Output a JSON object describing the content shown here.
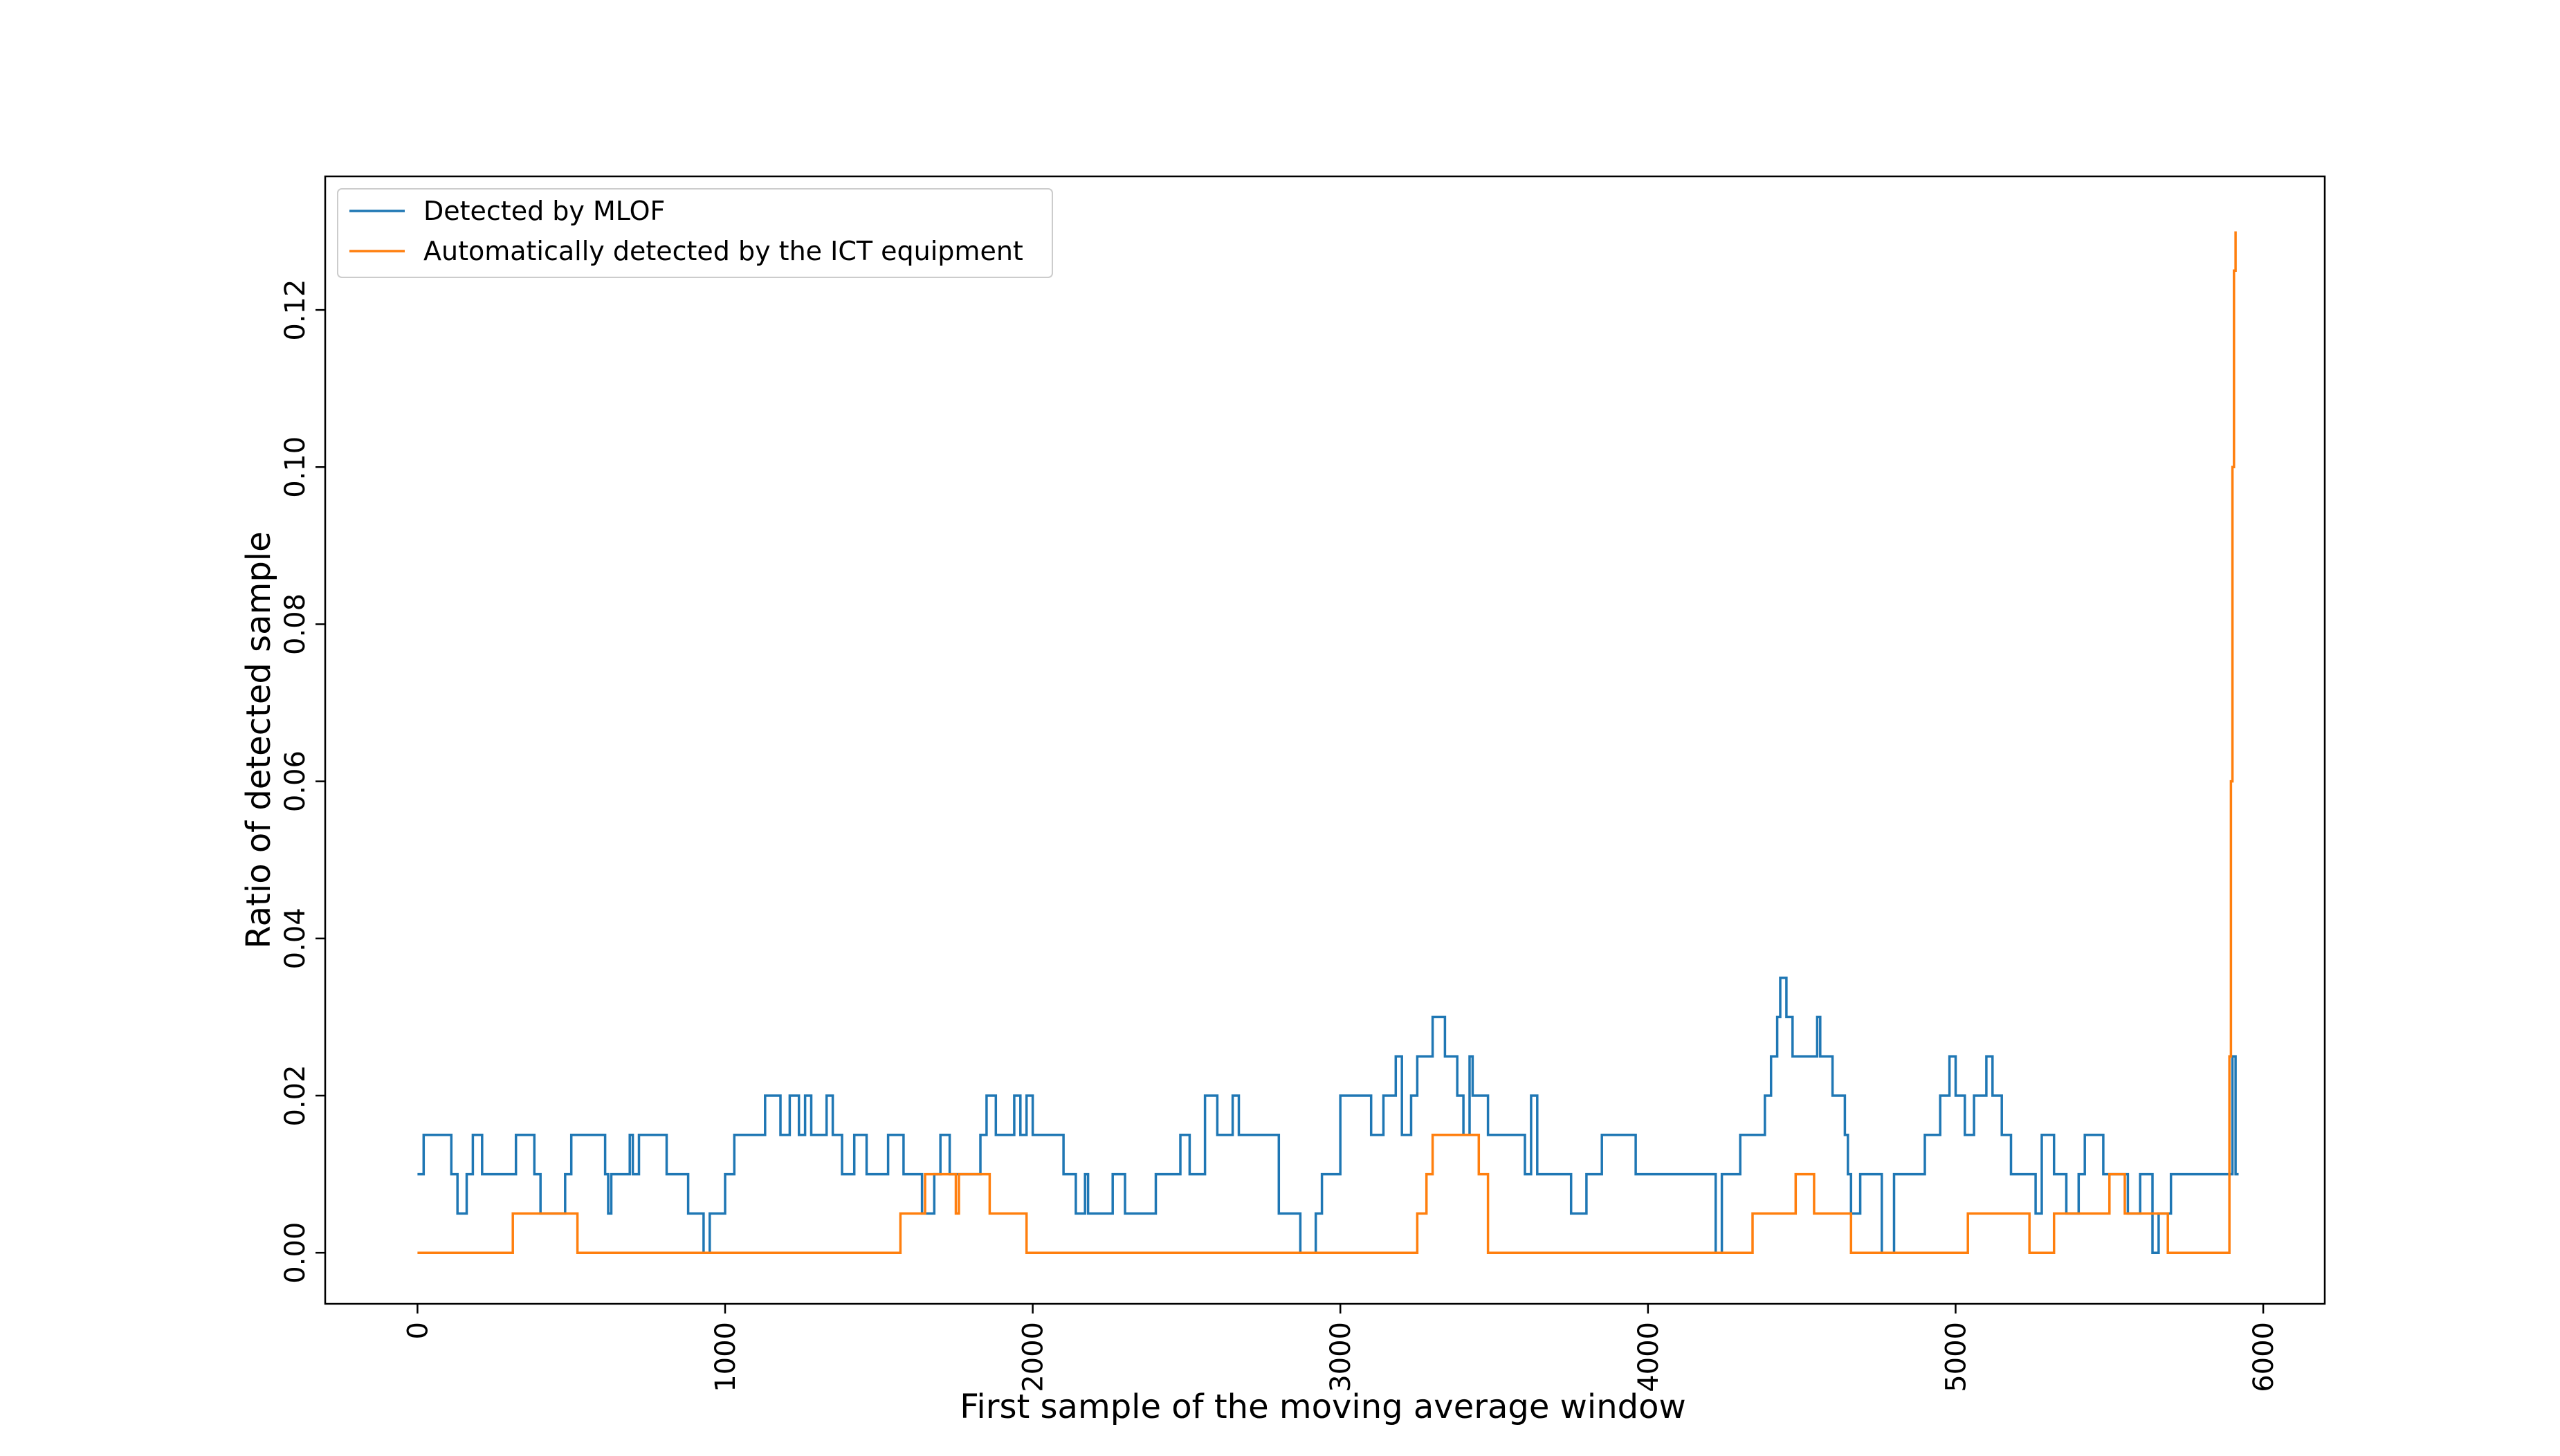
{
  "chart_data": {
    "type": "line",
    "title": "",
    "xlabel": "First sample of the moving average window",
    "ylabel": "Ratio of detected sample",
    "xlim": [
      -300,
      6200
    ],
    "ylim": [
      -0.0065,
      0.137
    ],
    "xticks": [
      0,
      1000,
      2000,
      3000,
      4000,
      5000,
      6000
    ],
    "xtick_labels": [
      "0",
      "1000",
      "2000",
      "3000",
      "4000",
      "5000",
      "6000"
    ],
    "yticks": [
      0.0,
      0.02,
      0.04,
      0.06,
      0.08,
      0.1,
      0.12
    ],
    "ytick_labels": [
      "0.00",
      "0.02",
      "0.04",
      "0.06",
      "0.08",
      "0.10",
      "0.12"
    ],
    "x_tick_rotation": 90,
    "y_tick_rotation": 90,
    "grid": false,
    "legend_position": "upper-left",
    "colors": {
      "mlof": "#1f77b4",
      "ict": "#ff7f0e"
    },
    "series": [
      {
        "name": "Detected by MLOF",
        "color": "#1f77b4",
        "step": true,
        "x": [
          0,
          20,
          100,
          110,
          130,
          160,
          180,
          210,
          320,
          380,
          400,
          480,
          500,
          610,
          620,
          630,
          690,
          700,
          720,
          810,
          880,
          930,
          950,
          1000,
          1030,
          1060,
          1130,
          1180,
          1210,
          1240,
          1260,
          1280,
          1330,
          1350,
          1380,
          1420,
          1460,
          1530,
          1580,
          1640,
          1680,
          1700,
          1730,
          1830,
          1850,
          1880,
          1940,
          1960,
          1980,
          2000,
          2020,
          2100,
          2140,
          2170,
          2180,
          2190,
          2200,
          2260,
          2300,
          2400,
          2480,
          2510,
          2560,
          2600,
          2620,
          2650,
          2670,
          2750,
          2800,
          2870,
          2920,
          2940,
          3000,
          3100,
          3140,
          3180,
          3200,
          3230,
          3250,
          3300,
          3340,
          3380,
          3400,
          3420,
          3430,
          3480,
          3600,
          3620,
          3640,
          3700,
          3750,
          3800,
          3850,
          3960,
          4000,
          4200,
          4220,
          4240,
          4300,
          4380,
          4400,
          4420,
          4430,
          4450,
          4470,
          4550,
          4560,
          4600,
          4640,
          4650,
          4660,
          4690,
          4760,
          4800,
          4900,
          4950,
          4980,
          5000,
          5030,
          5060,
          5100,
          5120,
          5150,
          5180,
          5230,
          5260,
          5280,
          5320,
          5360,
          5400,
          5420,
          5480,
          5520,
          5560,
          5600,
          5640,
          5660,
          5700,
          5850,
          5880,
          5900,
          5910,
          5920
        ],
        "values": [
          0.01,
          0.015,
          0.015,
          0.01,
          0.005,
          0.01,
          0.015,
          0.01,
          0.015,
          0.01,
          0.005,
          0.01,
          0.015,
          0.01,
          0.005,
          0.01,
          0.015,
          0.01,
          0.015,
          0.01,
          0.005,
          0.0,
          0.005,
          0.01,
          0.015,
          0.015,
          0.02,
          0.015,
          0.02,
          0.015,
          0.02,
          0.015,
          0.02,
          0.015,
          0.01,
          0.015,
          0.01,
          0.015,
          0.01,
          0.005,
          0.01,
          0.015,
          0.01,
          0.015,
          0.02,
          0.015,
          0.02,
          0.015,
          0.02,
          0.015,
          0.015,
          0.01,
          0.005,
          0.01,
          0.005,
          0.005,
          0.005,
          0.01,
          0.005,
          0.01,
          0.015,
          0.01,
          0.02,
          0.015,
          0.015,
          0.02,
          0.015,
          0.015,
          0.005,
          0.0,
          0.005,
          0.01,
          0.02,
          0.015,
          0.02,
          0.025,
          0.015,
          0.02,
          0.025,
          0.03,
          0.025,
          0.02,
          0.015,
          0.025,
          0.02,
          0.015,
          0.01,
          0.02,
          0.01,
          0.01,
          0.005,
          0.01,
          0.015,
          0.01,
          0.01,
          0.01,
          0.0,
          0.01,
          0.015,
          0.02,
          0.025,
          0.03,
          0.035,
          0.03,
          0.025,
          0.03,
          0.025,
          0.02,
          0.015,
          0.01,
          0.005,
          0.01,
          0.0,
          0.01,
          0.015,
          0.02,
          0.025,
          0.02,
          0.015,
          0.02,
          0.025,
          0.02,
          0.015,
          0.01,
          0.01,
          0.005,
          0.015,
          0.01,
          0.005,
          0.01,
          0.015,
          0.01,
          0.01,
          0.005,
          0.01,
          0.0,
          0.005,
          0.01,
          0.01,
          0.01,
          0.025,
          0.01,
          0.01
        ]
      },
      {
        "name": "Automatically detected by the ICT equipment",
        "color": "#ff7f0e",
        "step": true,
        "x": [
          0,
          310,
          520,
          1570,
          1650,
          1750,
          1760,
          1770,
          1860,
          1980,
          3250,
          3280,
          3300,
          3450,
          3480,
          4340,
          4480,
          4540,
          4660,
          5040,
          5240,
          5320,
          5380,
          5400,
          5460,
          5500,
          5550,
          5690,
          5890,
          5895,
          5900,
          5905,
          5910
        ],
        "values": [
          0.0,
          0.005,
          0.0,
          0.005,
          0.01,
          0.005,
          0.01,
          0.01,
          0.005,
          0.0,
          0.005,
          0.01,
          0.015,
          0.01,
          0.0,
          0.005,
          0.01,
          0.005,
          0.0,
          0.005,
          0.0,
          0.005,
          0.005,
          0.005,
          0.005,
          0.01,
          0.005,
          0.0,
          0.025,
          0.06,
          0.1,
          0.125,
          0.13
        ]
      }
    ]
  }
}
